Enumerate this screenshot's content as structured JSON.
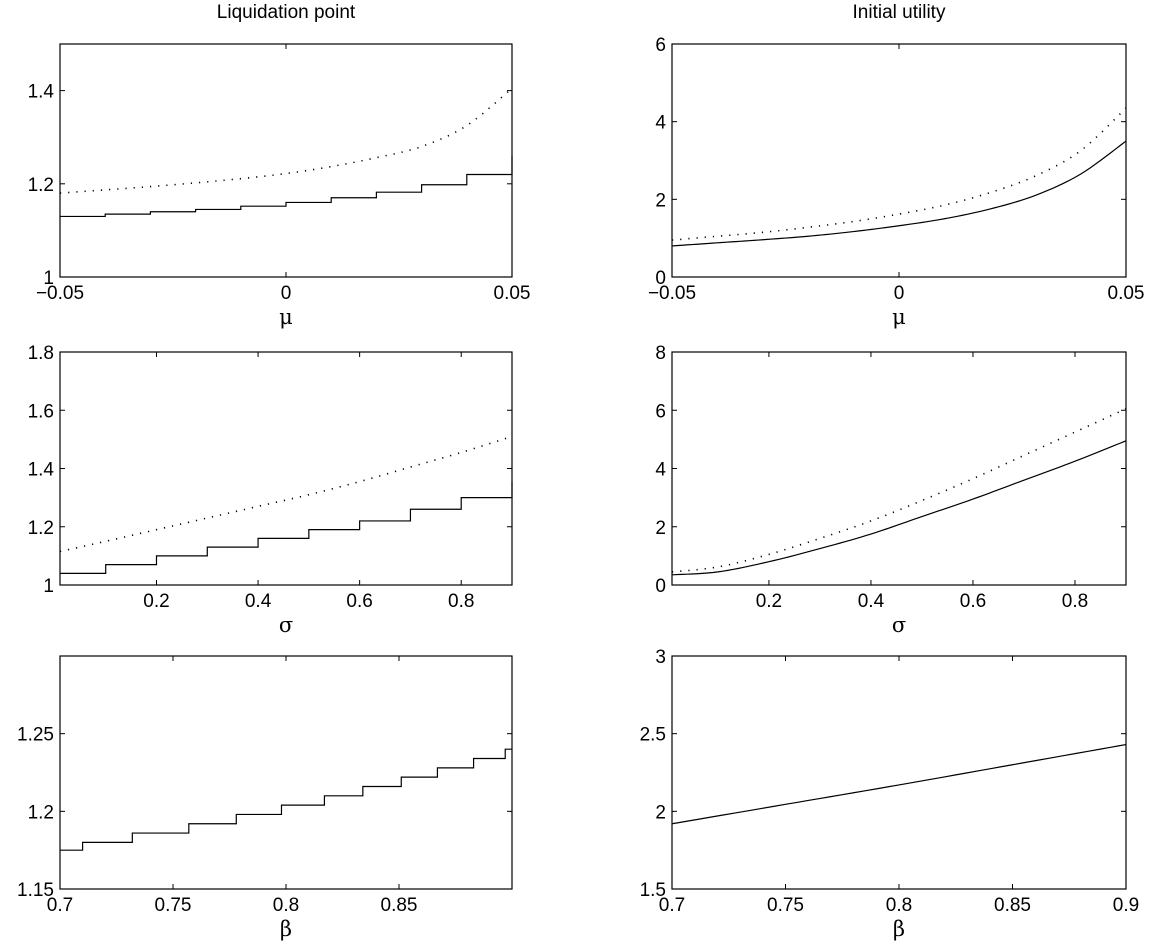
{
  "titles": {
    "left": "Liquidation point",
    "right": "Initial utility"
  },
  "chart_data": [
    {
      "type": "line",
      "title": "Liquidation point",
      "xlabel": "μ",
      "xlim": [
        -0.05,
        0.05
      ],
      "ylim": [
        1,
        1.5
      ],
      "xticks": [
        "−0.05",
        "0",
        "0.05"
      ],
      "yticks": [
        "1",
        "1.2",
        "1.4"
      ],
      "series": [
        {
          "style": "dotted",
          "x": [
            -0.05,
            -0.04,
            -0.03,
            -0.02,
            -0.01,
            0,
            0.01,
            0.02,
            0.03,
            0.04,
            0.05
          ],
          "y": [
            1.18,
            1.187,
            1.194,
            1.202,
            1.211,
            1.222,
            1.237,
            1.256,
            1.28,
            1.325,
            1.405
          ]
        },
        {
          "style": "solid-steps",
          "x": [
            -0.05,
            -0.04,
            -0.03,
            -0.02,
            -0.01,
            0,
            0.01,
            0.02,
            0.03,
            0.04,
            0.05
          ],
          "y": [
            1.13,
            1.135,
            1.14,
            1.145,
            1.152,
            1.16,
            1.17,
            1.182,
            1.198,
            1.22,
            1.26
          ]
        }
      ]
    },
    {
      "type": "line",
      "title": "Initial utility",
      "xlabel": "μ",
      "xlim": [
        -0.05,
        0.05
      ],
      "ylim": [
        0,
        6
      ],
      "xticks": [
        "−0.05",
        "0",
        "0.05"
      ],
      "yticks": [
        "0",
        "2",
        "4",
        "6"
      ],
      "series": [
        {
          "style": "dotted",
          "x": [
            -0.05,
            -0.04,
            -0.03,
            -0.02,
            -0.01,
            0,
            0.01,
            0.02,
            0.03,
            0.04,
            0.05
          ],
          "y": [
            0.95,
            1.05,
            1.15,
            1.28,
            1.43,
            1.62,
            1.85,
            2.17,
            2.6,
            3.25,
            4.35
          ]
        },
        {
          "style": "solid",
          "x": [
            -0.05,
            -0.04,
            -0.03,
            -0.02,
            -0.01,
            0,
            0.01,
            0.02,
            0.03,
            0.04,
            0.05
          ],
          "y": [
            0.8,
            0.88,
            0.96,
            1.05,
            1.17,
            1.32,
            1.5,
            1.75,
            2.1,
            2.65,
            3.5
          ]
        }
      ]
    },
    {
      "type": "line",
      "xlabel": "σ",
      "xlim": [
        0.01,
        0.9
      ],
      "ylim": [
        1,
        1.8
      ],
      "xticks": [
        "0.2",
        "0.4",
        "0.6",
        "0.8"
      ],
      "yticks": [
        "1",
        "1.2",
        "1.4",
        "1.6",
        "1.8"
      ],
      "series": [
        {
          "style": "dotted",
          "x": [
            0.01,
            0.1,
            0.2,
            0.3,
            0.4,
            0.5,
            0.6,
            0.7,
            0.8,
            0.9
          ],
          "y": [
            1.115,
            1.15,
            1.19,
            1.23,
            1.27,
            1.31,
            1.355,
            1.405,
            1.455,
            1.51
          ]
        },
        {
          "style": "solid-steps",
          "x": [
            0.01,
            0.1,
            0.2,
            0.3,
            0.4,
            0.5,
            0.6,
            0.7,
            0.8,
            0.9
          ],
          "y": [
            1.04,
            1.07,
            1.1,
            1.13,
            1.16,
            1.19,
            1.22,
            1.26,
            1.3,
            1.355
          ]
        }
      ]
    },
    {
      "type": "line",
      "xlabel": "σ",
      "xlim": [
        0.01,
        0.9
      ],
      "ylim": [
        0,
        8
      ],
      "xticks": [
        "0.2",
        "0.4",
        "0.6",
        "0.8"
      ],
      "yticks": [
        "0",
        "2",
        "4",
        "6",
        "8"
      ],
      "series": [
        {
          "style": "dotted",
          "x": [
            0.01,
            0.1,
            0.2,
            0.3,
            0.4,
            0.5,
            0.6,
            0.7,
            0.8,
            0.9
          ],
          "y": [
            0.45,
            0.62,
            1.05,
            1.6,
            2.2,
            2.9,
            3.65,
            4.45,
            5.25,
            6.05
          ]
        },
        {
          "style": "solid",
          "x": [
            0.01,
            0.1,
            0.2,
            0.3,
            0.4,
            0.5,
            0.6,
            0.7,
            0.8,
            0.9
          ],
          "y": [
            0.35,
            0.45,
            0.8,
            1.25,
            1.75,
            2.35,
            2.95,
            3.6,
            4.25,
            4.95
          ]
        }
      ]
    },
    {
      "type": "line",
      "xlabel": "β",
      "xlim": [
        0.7,
        0.9
      ],
      "ylim": [
        1.15,
        1.3
      ],
      "xticks": [
        "0.7",
        "0.75",
        "0.8",
        "0.85"
      ],
      "yticks": [
        "1.15",
        "1.2",
        "1.25"
      ],
      "series": [
        {
          "style": "solid-steps",
          "x": [
            0.7,
            0.71,
            0.732,
            0.757,
            0.778,
            0.798,
            0.817,
            0.834,
            0.851,
            0.867,
            0.883,
            0.897,
            0.9
          ],
          "y": [
            1.175,
            1.18,
            1.186,
            1.192,
            1.198,
            1.204,
            1.21,
            1.216,
            1.222,
            1.228,
            1.234,
            1.24,
            1.24
          ]
        }
      ]
    },
    {
      "type": "line",
      "xlabel": "β",
      "xlim": [
        0.7,
        0.9
      ],
      "ylim": [
        1.5,
        3
      ],
      "xticks": [
        "0.7",
        "0.75",
        "0.8",
        "0.85",
        "0.9"
      ],
      "yticks": [
        "1.5",
        "2",
        "2.5",
        "3"
      ],
      "series": [
        {
          "style": "solid",
          "x": [
            0.7,
            0.75,
            0.8,
            0.85,
            0.9
          ],
          "y": [
            1.92,
            2.045,
            2.17,
            2.3,
            2.43
          ]
        }
      ]
    }
  ]
}
